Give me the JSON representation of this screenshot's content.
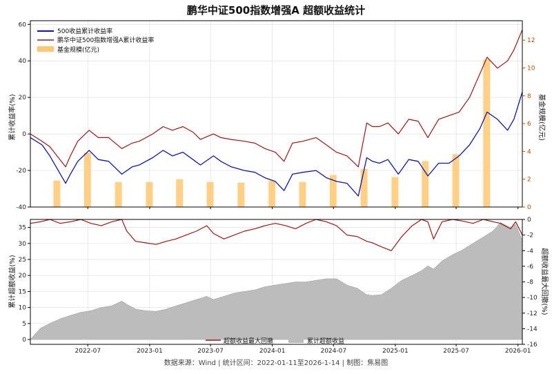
{
  "title": "鹏华中证500指数增强A 超额收益统计",
  "footer": "数据来源：Wind | 统计区间：2022-01-11至2026-1-14 | 制图：焦易图",
  "chart_data": [
    {
      "type": "line",
      "panel": "top",
      "ylabel": "累计收益率(%)",
      "y2label": "基金规模(亿元)",
      "ylim": [
        -40,
        62
      ],
      "y2lim": [
        0,
        13.4
      ],
      "yticks": [
        -40,
        -20,
        0,
        20,
        40,
        60
      ],
      "y2ticks": [
        0,
        2,
        4,
        6,
        8,
        10,
        12
      ],
      "x_ticks": [
        "2022-07",
        "2023-01",
        "2023-07",
        "2024-01",
        "2024-07",
        "2025-01",
        "2025-07",
        "2026-01"
      ],
      "x_range": [
        "2022-01-11",
        "2026-01-14"
      ],
      "legend_position": "top-left",
      "series": [
        {
          "name": "500收益累计收益率",
          "color": "#0a14b4",
          "x": [
            "2022-01-11",
            "2022-02-15",
            "2022-03-10",
            "2022-04-26",
            "2022-05-10",
            "2022-06-01",
            "2022-07-05",
            "2022-08-01",
            "2022-09-01",
            "2022-10-10",
            "2022-11-10",
            "2022-12-01",
            "2023-01-10",
            "2023-02-10",
            "2023-03-10",
            "2023-04-10",
            "2023-05-10",
            "2023-06-01",
            "2023-07-10",
            "2023-08-01",
            "2023-09-01",
            "2023-10-10",
            "2023-11-10",
            "2023-12-10",
            "2024-01-10",
            "2024-02-05",
            "2024-03-01",
            "2024-04-01",
            "2024-05-10",
            "2024-06-10",
            "2024-07-10",
            "2024-08-10",
            "2024-09-13",
            "2024-10-08",
            "2024-10-25",
            "2024-11-15",
            "2024-12-10",
            "2025-01-10",
            "2025-02-10",
            "2025-03-10",
            "2025-04-08",
            "2025-05-10",
            "2025-06-10",
            "2025-07-10",
            "2025-08-10",
            "2025-09-10",
            "2025-10-01",
            "2025-11-01",
            "2025-12-01",
            "2025-12-20",
            "2026-01-14"
          ],
          "values": [
            -2,
            -6,
            -12,
            -27,
            -22,
            -15,
            -9,
            -14,
            -15,
            -22,
            -18,
            -17,
            -13,
            -9,
            -12,
            -10,
            -14,
            -17,
            -12,
            -15,
            -18,
            -20,
            -21,
            -24,
            -26,
            -31,
            -22,
            -21,
            -20,
            -24,
            -26,
            -27,
            -34,
            -13,
            -15,
            -16,
            -14,
            -22,
            -14,
            -15,
            -23,
            -16,
            -16,
            -12,
            -6,
            3,
            12,
            8,
            2,
            8,
            23
          ]
        },
        {
          "name": "鹏华中证500指数增强A累计收益率",
          "color": "#a01414",
          "x": [
            "2022-01-11",
            "2022-02-15",
            "2022-03-10",
            "2022-04-26",
            "2022-05-10",
            "2022-06-01",
            "2022-07-05",
            "2022-08-01",
            "2022-09-01",
            "2022-10-10",
            "2022-11-10",
            "2022-12-01",
            "2023-01-10",
            "2023-02-10",
            "2023-03-10",
            "2023-04-10",
            "2023-05-10",
            "2023-06-01",
            "2023-07-10",
            "2023-08-01",
            "2023-09-01",
            "2023-10-10",
            "2023-11-10",
            "2023-12-10",
            "2024-01-10",
            "2024-02-05",
            "2024-03-01",
            "2024-04-01",
            "2024-05-10",
            "2024-06-10",
            "2024-07-10",
            "2024-08-10",
            "2024-09-13",
            "2024-10-08",
            "2024-10-25",
            "2024-11-15",
            "2024-12-10",
            "2025-01-10",
            "2025-02-10",
            "2025-03-10",
            "2025-04-08",
            "2025-05-10",
            "2025-06-10",
            "2025-07-10",
            "2025-08-10",
            "2025-09-10",
            "2025-10-01",
            "2025-11-01",
            "2025-12-01",
            "2025-12-20",
            "2026-01-14"
          ],
          "values": [
            0,
            -4,
            -7,
            -18,
            -12,
            -4,
            2,
            -2,
            -2,
            -8,
            -5,
            -4,
            0,
            4,
            2,
            4,
            1,
            -3,
            0,
            -2,
            -3,
            -4,
            -5,
            -8,
            -10,
            -15,
            -5,
            -4,
            -2,
            -6,
            -10,
            -12,
            -18,
            6,
            4,
            4,
            6,
            0,
            8,
            7,
            -2,
            8,
            10,
            12,
            20,
            33,
            42,
            36,
            40,
            46,
            57
          ]
        }
      ],
      "bars": {
        "name": "基金规模(亿元)",
        "color": "#ffc870",
        "x": [
          "2022-03-31",
          "2022-06-30",
          "2022-09-30",
          "2022-12-31",
          "2023-03-31",
          "2023-06-30",
          "2023-09-30",
          "2023-12-31",
          "2024-03-31",
          "2024-06-30",
          "2024-09-30",
          "2024-12-31",
          "2025-03-31",
          "2025-06-30",
          "2025-09-30"
        ],
        "values": [
          1.9,
          3.9,
          1.8,
          1.8,
          2.0,
          1.8,
          1.75,
          1.9,
          1.8,
          2.3,
          2.75,
          2.15,
          3.3,
          3.8,
          10.6
        ]
      }
    },
    {
      "type": "area",
      "panel": "bottom",
      "ylabel": "累计超额收益(%)",
      "y2label": "超额收益最大回撤(%)",
      "ylim": [
        -1.5,
        37.5
      ],
      "y2lim": [
        -16,
        0
      ],
      "yticks": [
        0,
        5,
        10,
        15,
        20,
        25,
        30,
        35
      ],
      "y2ticks": [
        -16,
        -14,
        -12,
        -10,
        -8,
        -6,
        -4,
        -2,
        0
      ],
      "x_ticks": [
        "2022-07",
        "2023-01",
        "2023-07",
        "2024-01",
        "2024-07",
        "2025-01",
        "2025-07",
        "2026-01"
      ],
      "legend_position": "bottom-center",
      "series": [
        {
          "name": "超额收益最大回撤",
          "kind": "line",
          "axis": "right",
          "color": "#a01414",
          "x": [
            "2022-01-11",
            "2022-02-10",
            "2022-03-10",
            "2022-04-10",
            "2022-05-10",
            "2022-06-10",
            "2022-07-10",
            "2022-08-10",
            "2022-09-10",
            "2022-10-10",
            "2022-10-25",
            "2022-11-20",
            "2022-12-20",
            "2023-01-20",
            "2023-02-20",
            "2023-03-20",
            "2023-04-20",
            "2023-05-20",
            "2023-06-20",
            "2023-07-10",
            "2023-08-10",
            "2023-09-10",
            "2023-10-10",
            "2023-11-10",
            "2023-12-10",
            "2024-01-10",
            "2024-02-10",
            "2024-03-10",
            "2024-04-10",
            "2024-05-10",
            "2024-06-10",
            "2024-07-10",
            "2024-08-10",
            "2024-09-10",
            "2024-10-08",
            "2024-10-25",
            "2024-11-20",
            "2024-12-20",
            "2025-01-20",
            "2025-02-20",
            "2025-03-20",
            "2025-04-08",
            "2025-04-25",
            "2025-05-20",
            "2025-06-20",
            "2025-07-20",
            "2025-08-20",
            "2025-09-20",
            "2025-10-20",
            "2025-11-10",
            "2025-12-10",
            "2025-12-25",
            "2026-01-14"
          ],
          "values": [
            -0.5,
            -0.3,
            0,
            -0.5,
            -0.3,
            0,
            -0.5,
            -0.8,
            -0.3,
            0,
            -1.5,
            -2.8,
            -3.0,
            -3.2,
            -2.8,
            -2.5,
            -2.0,
            -1.5,
            -0.8,
            -1.8,
            -2.5,
            -2.0,
            -1.5,
            -1.2,
            -0.8,
            -0.5,
            -0.8,
            -1.2,
            -0.5,
            0,
            -0.3,
            -0.8,
            -2.0,
            -2.2,
            -2.8,
            -3.0,
            -3.5,
            -4.0,
            -2.2,
            -0.8,
            0,
            -0.3,
            -2.5,
            -0.3,
            0,
            -0.2,
            -0.5,
            0,
            -0.3,
            -0.5,
            -1.2,
            -0.3,
            -2.0
          ]
        },
        {
          "name": "累计超额收益",
          "kind": "area",
          "axis": "left",
          "color": "#bcbcbc",
          "x": [
            "2022-01-11",
            "2022-02-10",
            "2022-03-10",
            "2022-04-10",
            "2022-05-10",
            "2022-06-10",
            "2022-07-10",
            "2022-08-10",
            "2022-09-10",
            "2022-10-10",
            "2022-10-25",
            "2022-11-20",
            "2022-12-20",
            "2023-01-20",
            "2023-02-20",
            "2023-03-20",
            "2023-04-20",
            "2023-05-20",
            "2023-06-20",
            "2023-07-10",
            "2023-08-10",
            "2023-09-10",
            "2023-10-10",
            "2023-11-10",
            "2023-12-10",
            "2024-01-10",
            "2024-02-10",
            "2024-03-10",
            "2024-04-10",
            "2024-05-10",
            "2024-06-10",
            "2024-07-10",
            "2024-08-10",
            "2024-09-10",
            "2024-10-08",
            "2024-10-25",
            "2024-11-20",
            "2024-12-20",
            "2025-01-20",
            "2025-02-20",
            "2025-03-20",
            "2025-04-08",
            "2025-04-25",
            "2025-05-20",
            "2025-06-20",
            "2025-07-20",
            "2025-08-20",
            "2025-09-20",
            "2025-10-20",
            "2025-11-10",
            "2025-12-10",
            "2025-12-25",
            "2026-01-14"
          ],
          "values": [
            0,
            3.5,
            5,
            6.5,
            7.5,
            8.5,
            9,
            10,
            10.5,
            12,
            11,
            9.5,
            9,
            8.8,
            9.5,
            10.5,
            11.5,
            12.5,
            13.5,
            12.5,
            13.5,
            14.5,
            15,
            15.5,
            16.5,
            17,
            17.5,
            18,
            18,
            18.5,
            19,
            19,
            17,
            16,
            14,
            13.8,
            14,
            16,
            18.5,
            20,
            21.5,
            23,
            22,
            24.5,
            26.5,
            28,
            30,
            32,
            34,
            36.5,
            35,
            36,
            31
          ]
        }
      ]
    }
  ]
}
